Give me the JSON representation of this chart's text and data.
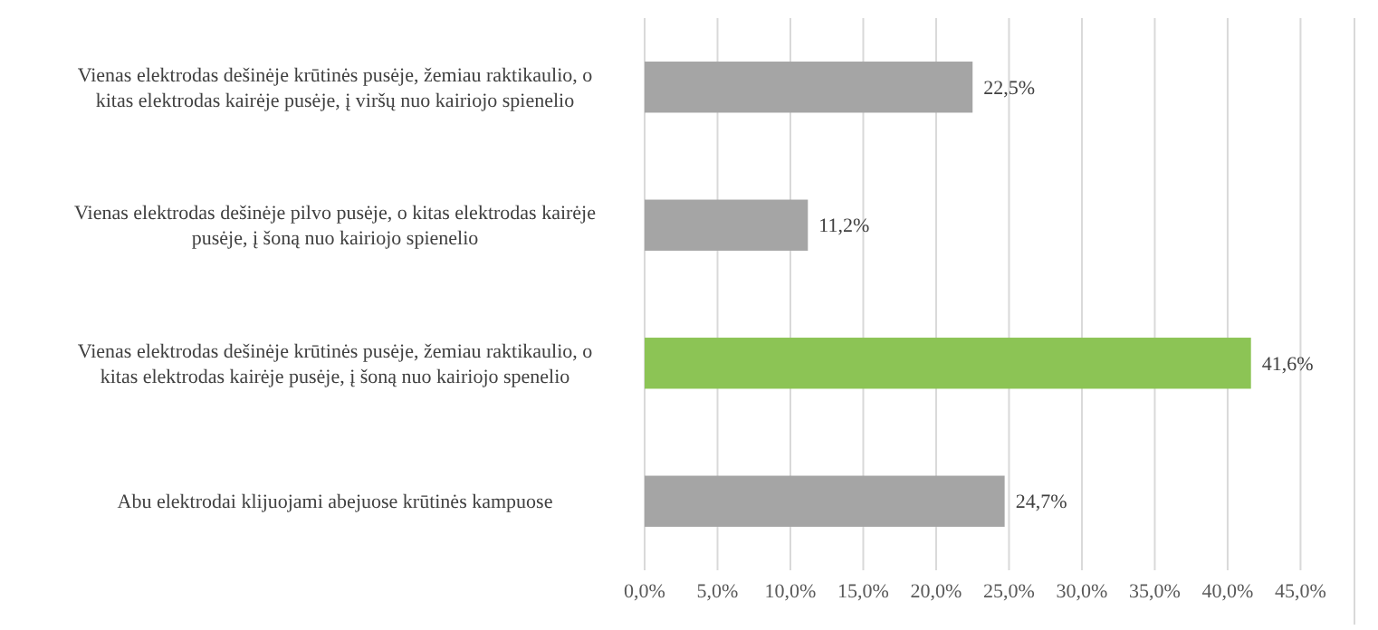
{
  "chart_data": {
    "type": "bar",
    "orientation": "horizontal",
    "categories": [
      "Vienas elektrodas dešinėje krūtinės pusėje, žemiau raktikaulio, o kitas elektrodas kairėje pusėje, į viršų nuo kairiojo spienelio",
      "Vienas elektrodas dešinėje pilvo pusėje, o kitas elektrodas kairėje pusėje, į šoną nuo kairiojo spienelio",
      "Vienas elektrodas dešinėje krūtinės pusėje, žemiau raktikaulio, o kitas elektrodas kairėje pusėje, į šoną nuo kairiojo spenelio",
      "Abu elektrodai klijuojami abejuose krūtinės kampuose"
    ],
    "values": [
      22.5,
      11.2,
      41.6,
      24.7
    ],
    "colors": [
      "#a5a5a5",
      "#a5a5a5",
      "#8cc455",
      "#a5a5a5"
    ],
    "value_labels": [
      "22,5%",
      "11,2%",
      "41,6%",
      "24,7%"
    ],
    "xlim": [
      0,
      48.7
    ],
    "xticks": [
      {
        "value": 0,
        "label": "0,0%"
      },
      {
        "value": 5,
        "label": "5,0%"
      },
      {
        "value": 10,
        "label": "10,0%"
      },
      {
        "value": 15,
        "label": "15,0%"
      },
      {
        "value": 20,
        "label": "20,0%"
      },
      {
        "value": 25,
        "label": "25,0%"
      },
      {
        "value": 30,
        "label": "30,0%"
      },
      {
        "value": 35,
        "label": "35,0%"
      },
      {
        "value": 40,
        "label": "40,0%"
      },
      {
        "value": 45,
        "label": "45,0%"
      }
    ],
    "grid": "x"
  }
}
